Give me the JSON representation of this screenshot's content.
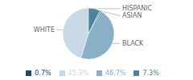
{
  "chart_data": {
    "type": "pie",
    "categories": [
      "WHITE",
      "BLACK",
      "ASIAN",
      "HISPANIC"
    ],
    "values": [
      45.3,
      46.7,
      0.7,
      7.3
    ],
    "value_labels": [
      "45.3%",
      "46.7%",
      "0.7%",
      "7.3%"
    ],
    "colors": [
      "#c8d8e4",
      "#8ab0c6",
      "#1e4d6b",
      "#4d82a0"
    ],
    "legend": "bottom"
  }
}
